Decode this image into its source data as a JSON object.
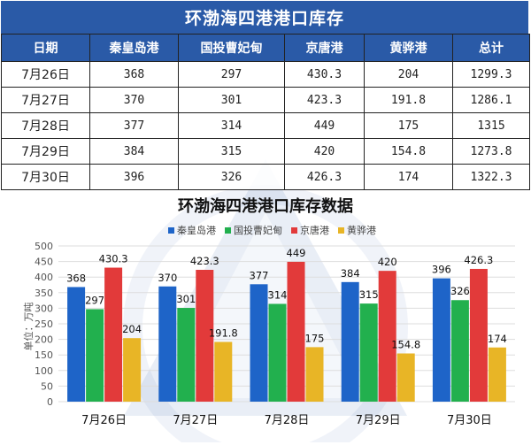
{
  "table": {
    "title": "环渤海四港港口库存",
    "headers": [
      "日期",
      "秦皇岛港",
      "国投曹妃甸",
      "京唐港",
      "黄骅港",
      "总计"
    ],
    "rows": [
      [
        "7月26日",
        "368",
        "297",
        "430.3",
        "204",
        "1299.3"
      ],
      [
        "7月27日",
        "370",
        "301",
        "423.3",
        "191.8",
        "1286.1"
      ],
      [
        "7月28日",
        "377",
        "314",
        "449",
        "175",
        "1315"
      ],
      [
        "7月29日",
        "384",
        "315",
        "420",
        "154.8",
        "1273.8"
      ],
      [
        "7月30日",
        "396",
        "326",
        "426.3",
        "174",
        "1322.3"
      ]
    ]
  },
  "chart_data": {
    "type": "bar",
    "title": "环渤海四港港口库存数据",
    "ylabel": "单位：万吨",
    "xlabel": "",
    "categories": [
      "7月26日",
      "7月27日",
      "7月28日",
      "7月29日",
      "7月30日"
    ],
    "ylim": [
      0,
      500
    ],
    "yticks": [
      0,
      50,
      100,
      150,
      200,
      250,
      300,
      350,
      400,
      450,
      500
    ],
    "legend_position": "top-right",
    "grid": true,
    "series": [
      {
        "name": "秦皇岛港",
        "color": "#1e64c8",
        "values": [
          368,
          370,
          377,
          384,
          396
        ],
        "labels": [
          "368",
          "370",
          "377",
          "384",
          "396"
        ]
      },
      {
        "name": "国投曹妃甸",
        "color": "#22b04e",
        "values": [
          297,
          301,
          314,
          315,
          326
        ],
        "labels": [
          "297",
          "301",
          "314",
          "315",
          "326"
        ]
      },
      {
        "name": "京唐港",
        "color": "#e23a3a",
        "values": [
          430.3,
          423.3,
          449,
          420,
          426.3
        ],
        "labels": [
          "430.3",
          "423.3",
          "449",
          "420",
          "426.3"
        ]
      },
      {
        "name": "黄骅港",
        "color": "#e8b526",
        "values": [
          204,
          191.8,
          175,
          154.8,
          174
        ],
        "labels": [
          "204",
          "191.8",
          "175",
          "154.8",
          "174"
        ]
      }
    ]
  }
}
